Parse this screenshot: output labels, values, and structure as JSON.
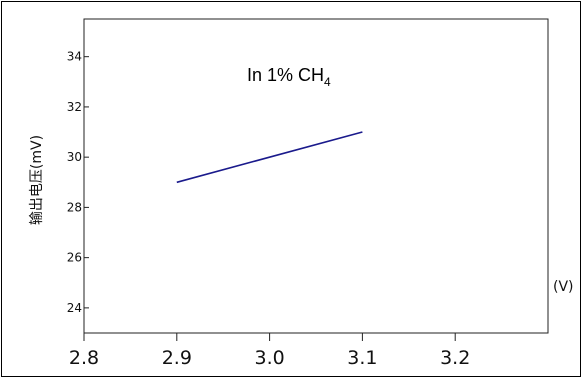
{
  "chart_data": {
    "type": "line",
    "annotation": {
      "main": "In 1% CH",
      "subscript": "4"
    },
    "ylabel": "输出电压(mV)",
    "xlabel_unit": "(V)",
    "xlim": [
      2.8,
      3.3
    ],
    "ylim": [
      23,
      35.5
    ],
    "x_ticks": [
      "2.8",
      "2.9",
      "3.0",
      "3.1",
      "3.2"
    ],
    "y_ticks": [
      "24",
      "26",
      "28",
      "30",
      "32",
      "34"
    ],
    "series": [
      {
        "color": "#1a1a8c",
        "x": [
          2.9,
          3.1
        ],
        "y": [
          29.0,
          31.0
        ]
      }
    ],
    "grid": false
  }
}
